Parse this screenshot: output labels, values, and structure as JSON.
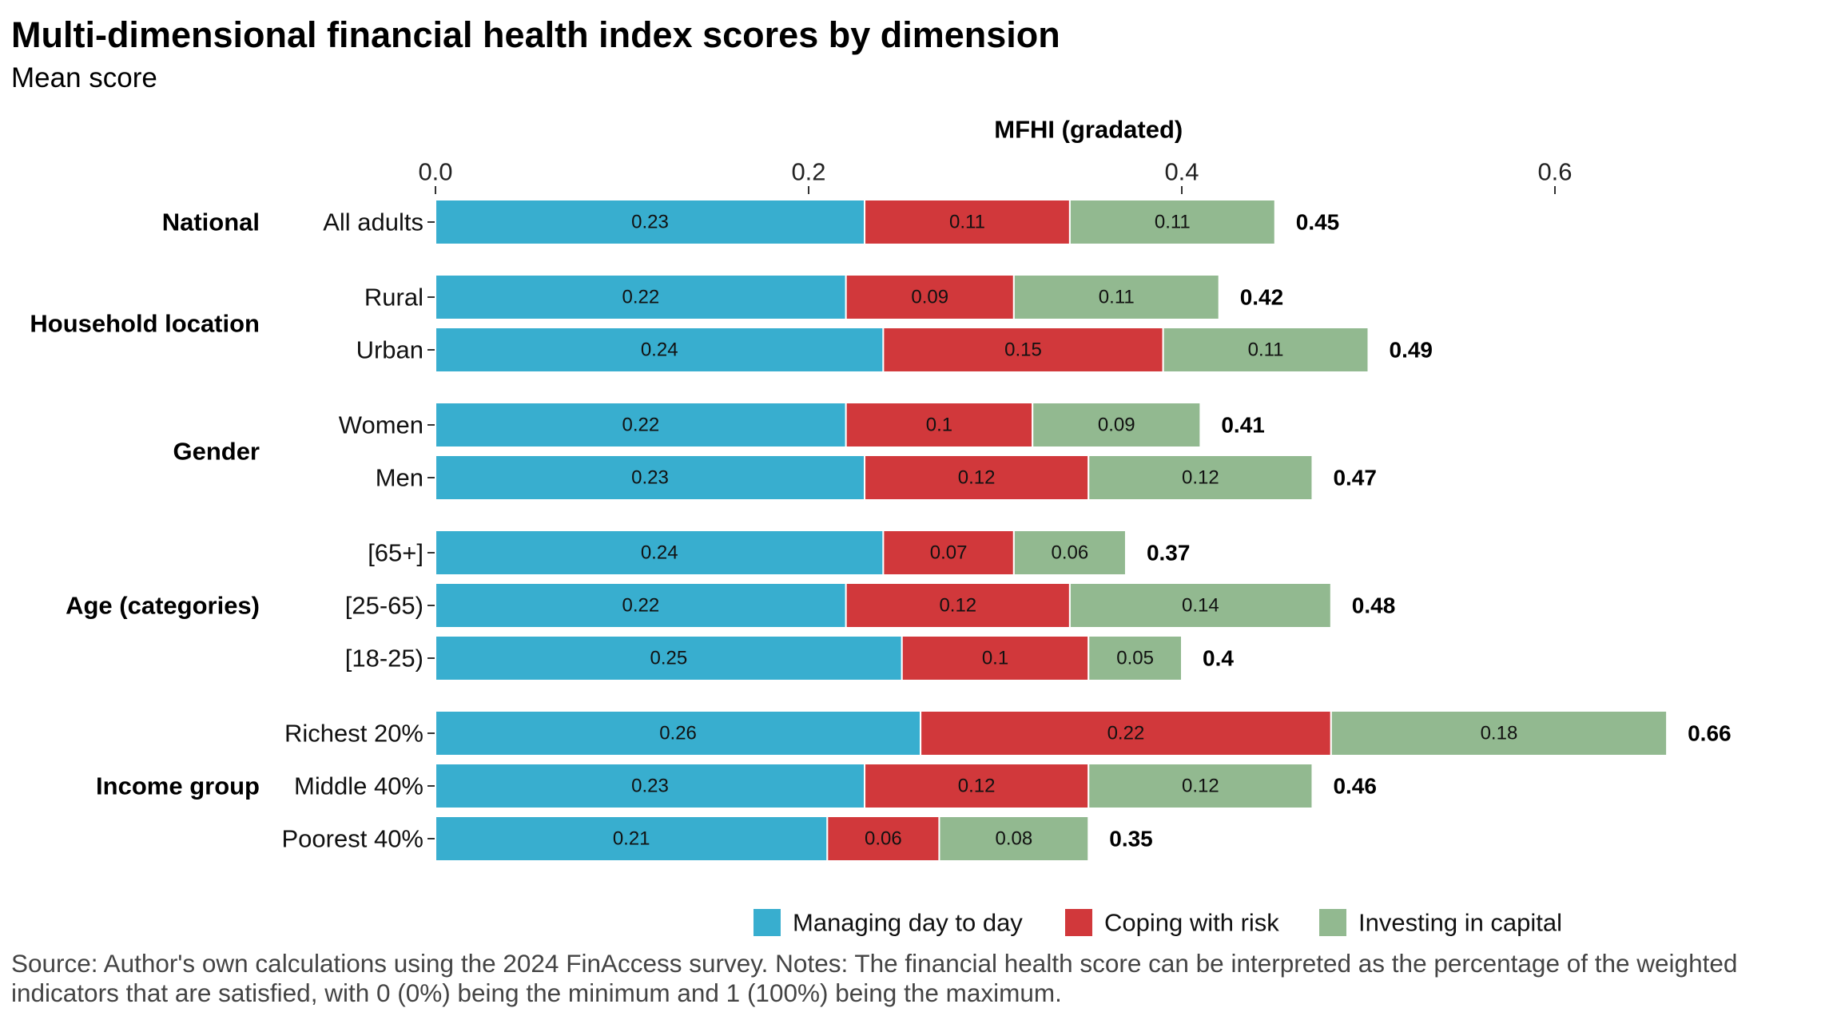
{
  "title": "Multi-dimensional financial health index scores by dimension",
  "subtitle": "Mean score",
  "source_note": "Source: Author's own calculations using the 2024 FinAccess survey. Notes: The financial health score can be interpreted as the percentage of the weighted indicators that are satisfied, with 0 (0%) being the minimum and 1 (100%) being the maximum.",
  "colors": {
    "Managing day to day": "#38AECF",
    "Coping with risk": "#D1383B",
    "Investing in capital": "#92B990"
  },
  "chart_data": {
    "type": "bar",
    "orientation": "horizontal",
    "stacked": true,
    "xlabel": "MFHI (gradated)",
    "xaxis_position": "top",
    "xlim": [
      0,
      0.7
    ],
    "xticks": [
      0.0,
      0.2,
      0.4,
      0.6
    ],
    "xtick_labels": [
      "0.0",
      "0.2",
      "0.4",
      "0.6"
    ],
    "grid": false,
    "legend": {
      "position": "bottom",
      "entries": [
        "Managing day to day",
        "Coping with risk",
        "Investing in capital"
      ]
    },
    "groups": [
      {
        "name": "National",
        "rows": [
          {
            "label": "All adults",
            "values": [
              0.23,
              0.11,
              0.11
            ],
            "value_labels": [
              "0.23",
              "0.11",
              "0.11"
            ],
            "total": "0.45"
          }
        ]
      },
      {
        "name": "Household location",
        "rows": [
          {
            "label": "Rural",
            "values": [
              0.22,
              0.09,
              0.11
            ],
            "value_labels": [
              "0.22",
              "0.09",
              "0.11"
            ],
            "total": "0.42"
          },
          {
            "label": "Urban",
            "values": [
              0.24,
              0.15,
              0.11
            ],
            "value_labels": [
              "0.24",
              "0.15",
              "0.11"
            ],
            "total": "0.49"
          }
        ]
      },
      {
        "name": "Gender",
        "rows": [
          {
            "label": "Women",
            "values": [
              0.22,
              0.1,
              0.09
            ],
            "value_labels": [
              "0.22",
              "0.1",
              "0.09"
            ],
            "total": "0.41"
          },
          {
            "label": "Men",
            "values": [
              0.23,
              0.12,
              0.12
            ],
            "value_labels": [
              "0.23",
              "0.12",
              "0.12"
            ],
            "total": "0.47"
          }
        ]
      },
      {
        "name": "Age (categories)",
        "rows": [
          {
            "label": "[65+]",
            "values": [
              0.24,
              0.07,
              0.06
            ],
            "value_labels": [
              "0.24",
              "0.07",
              "0.06"
            ],
            "total": "0.37"
          },
          {
            "label": "[25-65)",
            "values": [
              0.22,
              0.12,
              0.14
            ],
            "value_labels": [
              "0.22",
              "0.12",
              "0.14"
            ],
            "total": "0.48"
          },
          {
            "label": "[18-25)",
            "values": [
              0.25,
              0.1,
              0.05
            ],
            "value_labels": [
              "0.25",
              "0.1",
              "0.05"
            ],
            "total": "0.4"
          }
        ]
      },
      {
        "name": "Income group",
        "rows": [
          {
            "label": "Richest 20%",
            "values": [
              0.26,
              0.22,
              0.18
            ],
            "value_labels": [
              "0.26",
              "0.22",
              "0.18"
            ],
            "total": "0.66"
          },
          {
            "label": "Middle 40%",
            "values": [
              0.23,
              0.12,
              0.12
            ],
            "value_labels": [
              "0.23",
              "0.12",
              "0.12"
            ],
            "total": "0.46"
          },
          {
            "label": "Poorest 40%",
            "values": [
              0.21,
              0.06,
              0.08
            ],
            "value_labels": [
              "0.21",
              "0.06",
              "0.08"
            ],
            "total": "0.35"
          }
        ]
      }
    ]
  }
}
